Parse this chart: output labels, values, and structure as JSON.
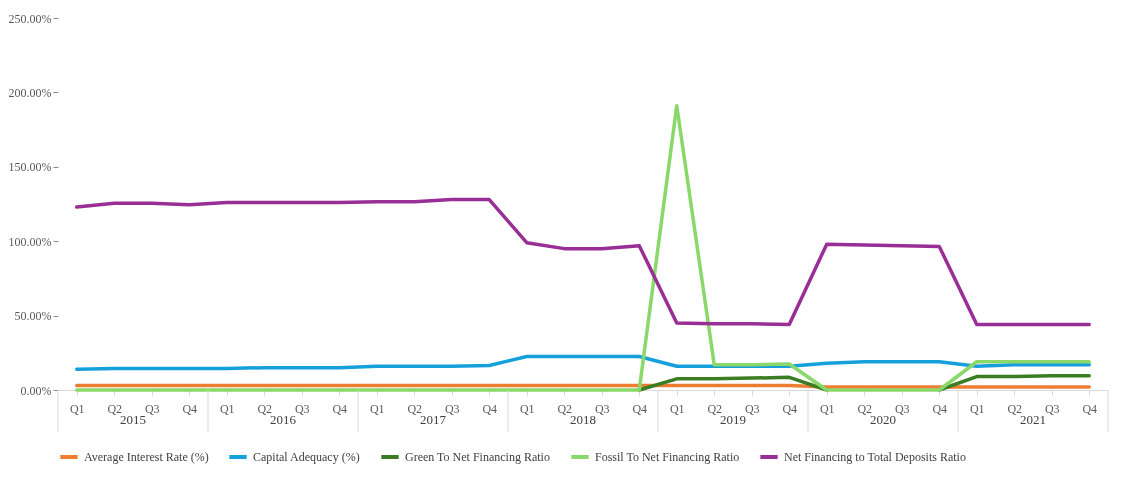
{
  "chart_data": {
    "type": "line",
    "categories": [
      "Q1",
      "Q2",
      "Q3",
      "Q4",
      "Q1",
      "Q2",
      "Q3",
      "Q4",
      "Q1",
      "Q2",
      "Q3",
      "Q4",
      "Q1",
      "Q2",
      "Q3",
      "Q4",
      "Q1",
      "Q2",
      "Q3",
      "Q4",
      "Q1",
      "Q2",
      "Q3",
      "Q4",
      "Q1",
      "Q2",
      "Q3",
      "Q4"
    ],
    "annotations": [
      "2015",
      "2016",
      "2017",
      "2018",
      "2019",
      "2020",
      "2021"
    ],
    "ylim": [
      0,
      250
    ],
    "yticks": [
      {
        "value": 0,
        "label": "0.00%"
      },
      {
        "value": 50,
        "label": "50.00%"
      },
      {
        "value": 100,
        "label": "100.00%"
      },
      {
        "value": 150,
        "label": "150.00%"
      },
      {
        "value": 200,
        "label": "200.00%"
      },
      {
        "value": 250,
        "label": "250.00%"
      }
    ],
    "grid": false,
    "legend": "bottom",
    "line_style": "solid",
    "marker": "none",
    "series": [
      {
        "name": "Average Interest Rate (%)",
        "color": "#ed7d31",
        "values": [
          3,
          3,
          3,
          3,
          3,
          3,
          3,
          3,
          3,
          3,
          3,
          3,
          3,
          3,
          3,
          3,
          3,
          3,
          3,
          3,
          2,
          2,
          2,
          2,
          2,
          2,
          2,
          2
        ]
      },
      {
        "name": "Capital Adequacy (%)",
        "color": "#16a0db",
        "values": [
          14,
          14.5,
          14.5,
          14.5,
          14.5,
          15,
          15,
          15,
          16,
          16,
          16,
          16.5,
          22.5,
          22.5,
          22.5,
          22.5,
          16,
          16,
          16,
          16,
          18,
          19,
          19,
          19,
          16,
          17,
          17,
          17
        ]
      },
      {
        "name": "Green To Net Financing Ratio",
        "color": "#3a7d22",
        "values": [
          null,
          null,
          null,
          null,
          null,
          null,
          null,
          null,
          null,
          null,
          null,
          null,
          null,
          null,
          null,
          0,
          7.5,
          7.5,
          8,
          8.5,
          0,
          null,
          null,
          0,
          9,
          9,
          9.5,
          9.5
        ]
      },
      {
        "name": "Fossil To Net Financing Ratio",
        "color": "#8ad86a",
        "values": [
          0,
          0,
          0,
          0,
          0,
          0,
          0,
          0,
          0,
          0,
          0,
          0,
          0,
          0,
          0,
          0,
          191,
          17,
          17,
          17.5,
          0,
          0,
          0,
          0,
          19,
          19,
          19,
          19
        ]
      },
      {
        "name": "Net Financing to Total Deposits Ratio",
        "color": "#9a2e97",
        "values": [
          123,
          125.5,
          125.5,
          124.5,
          126,
          126,
          126,
          126,
          126.5,
          126.5,
          128,
          128,
          99,
          95,
          95,
          97,
          45,
          44.5,
          44.5,
          44,
          98,
          97.5,
          97,
          96.5,
          44,
          44,
          44,
          44
        ]
      }
    ]
  }
}
